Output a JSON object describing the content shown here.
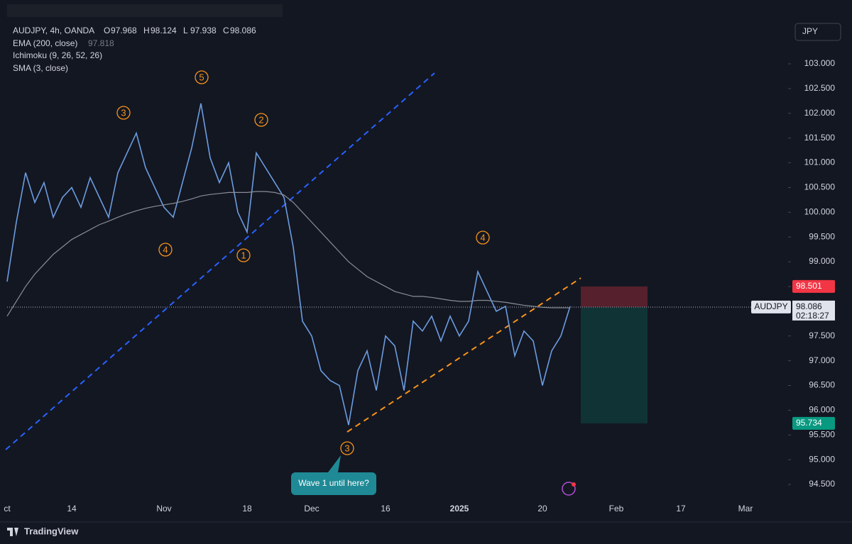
{
  "chart_data": {
    "type": "line",
    "symbol": "AUDJPY, 4h, OANDA",
    "ohlc": [
      {
        "label": "O",
        "value": 97.968
      },
      {
        "label": "H",
        "value": 98.124
      },
      {
        "label": "L",
        "value": 97.938
      },
      {
        "label": "C",
        "value": 98.086
      }
    ],
    "indicators": [
      {
        "name": "EMA (200, close)",
        "value": 97.818
      },
      {
        "name": "Ichimoku (9, 26, 52, 26)"
      },
      {
        "name": "SMA (3, close)"
      }
    ],
    "currency": "JPY",
    "categories": [
      "ct",
      null,
      null,
      null,
      null,
      null,
      null,
      "14",
      null,
      null,
      null,
      null,
      null,
      null,
      null,
      null,
      null,
      "Nov",
      null,
      null,
      null,
      null,
      null,
      null,
      null,
      null,
      "18",
      null,
      null,
      null,
      null,
      null,
      null,
      "Dec",
      null,
      null,
      null,
      null,
      null,
      null,
      null,
      "16",
      null,
      null,
      null,
      null,
      null,
      null,
      null,
      "2025",
      null,
      null,
      null,
      null,
      null,
      null,
      null,
      null,
      "20",
      null,
      null,
      null,
      null,
      null,
      null,
      null,
      "Feb",
      null,
      null,
      null,
      null,
      null,
      null,
      "17",
      null,
      null,
      null,
      null,
      null,
      null,
      "Mar",
      null,
      null,
      null,
      null
    ],
    "series": [
      {
        "name": "AUDJPY",
        "color": "#6c9ce0",
        "values": [
          98.6,
          99.8,
          100.8,
          100.2,
          100.6,
          99.9,
          100.3,
          100.5,
          100.1,
          100.7,
          100.3,
          99.9,
          100.8,
          101.2,
          101.6,
          100.9,
          100.5,
          100.1,
          99.9,
          100.6,
          101.3,
          102.2,
          101.1,
          100.6,
          101.0,
          100.0,
          99.6,
          101.2,
          100.9,
          100.6,
          100.3,
          99.3,
          97.8,
          97.5,
          96.8,
          96.6,
          96.5,
          95.7,
          96.8,
          97.2,
          96.4,
          97.5,
          97.3,
          96.4,
          97.8,
          97.6,
          97.9,
          97.4,
          97.9,
          97.5,
          97.8,
          98.8,
          98.4,
          98.0,
          98.1,
          97.1,
          97.6,
          97.4,
          96.5,
          97.2,
          97.5,
          98.1,
          null,
          null,
          null,
          null,
          null,
          null,
          null,
          null,
          null,
          null,
          null,
          null,
          null,
          null,
          null,
          null,
          null,
          null,
          null,
          null,
          null,
          null,
          null
        ]
      },
      {
        "name": "EMA (200, close)",
        "color": "#8a8d96",
        "values": [
          97.9,
          98.2,
          98.5,
          98.75,
          98.95,
          99.15,
          99.3,
          99.45,
          99.55,
          99.65,
          99.75,
          99.82,
          99.9,
          99.97,
          100.03,
          100.08,
          100.12,
          100.15,
          100.18,
          100.22,
          100.27,
          100.33,
          100.36,
          100.38,
          100.4,
          100.4,
          100.4,
          100.42,
          100.42,
          100.4,
          100.35,
          100.2,
          100.0,
          99.8,
          99.6,
          99.4,
          99.2,
          99.0,
          98.85,
          98.7,
          98.6,
          98.5,
          98.4,
          98.35,
          98.3,
          98.3,
          98.28,
          98.25,
          98.22,
          98.2,
          98.2,
          98.22,
          98.22,
          98.2,
          98.18,
          98.15,
          98.12,
          98.1,
          98.08,
          98.07,
          98.07,
          98.07,
          null,
          null,
          null,
          null,
          null,
          null,
          null,
          null,
          null,
          null,
          null,
          null,
          null,
          null,
          null,
          null,
          null,
          null,
          null,
          null,
          null,
          null,
          null
        ]
      }
    ],
    "ylim": [
      94.185,
      103.86
    ],
    "yticks": [
      {
        "value": 94.5,
        "label": "94.500"
      },
      {
        "value": 95,
        "label": "95.000"
      },
      {
        "value": 95.5,
        "label": "95.500"
      },
      {
        "value": 96,
        "label": "96.000"
      },
      {
        "value": 96.5,
        "label": "96.500"
      },
      {
        "value": 97,
        "label": "97.000"
      },
      {
        "value": 97.5,
        "label": "97.500"
      },
      {
        "value": 98,
        "label": "98.000"
      },
      {
        "value": 98.5,
        "label": "98.500"
      },
      {
        "value": 99,
        "label": "99.000"
      },
      {
        "value": 99.5,
        "label": "99.500"
      },
      {
        "value": 100,
        "label": "100.000"
      },
      {
        "value": 100.5,
        "label": "100.500"
      },
      {
        "value": 101,
        "label": "101.000"
      },
      {
        "value": 101.5,
        "label": "101.500"
      },
      {
        "value": 102,
        "label": "102.000"
      },
      {
        "value": 102.5,
        "label": "102.500"
      },
      {
        "value": 103,
        "label": "103.000"
      }
    ],
    "last_price": {
      "symbol": "AUDJPY",
      "value": 98.086,
      "countdown": "02:18:27"
    },
    "sma_price": 98.075,
    "position": {
      "stop": 98.501,
      "target": 95.734
    },
    "wave_labels": [
      "3",
      "5",
      "2",
      "4",
      "1",
      "3",
      "4"
    ],
    "annotation": "Wave 1 until here?",
    "brand": "TradingView"
  }
}
